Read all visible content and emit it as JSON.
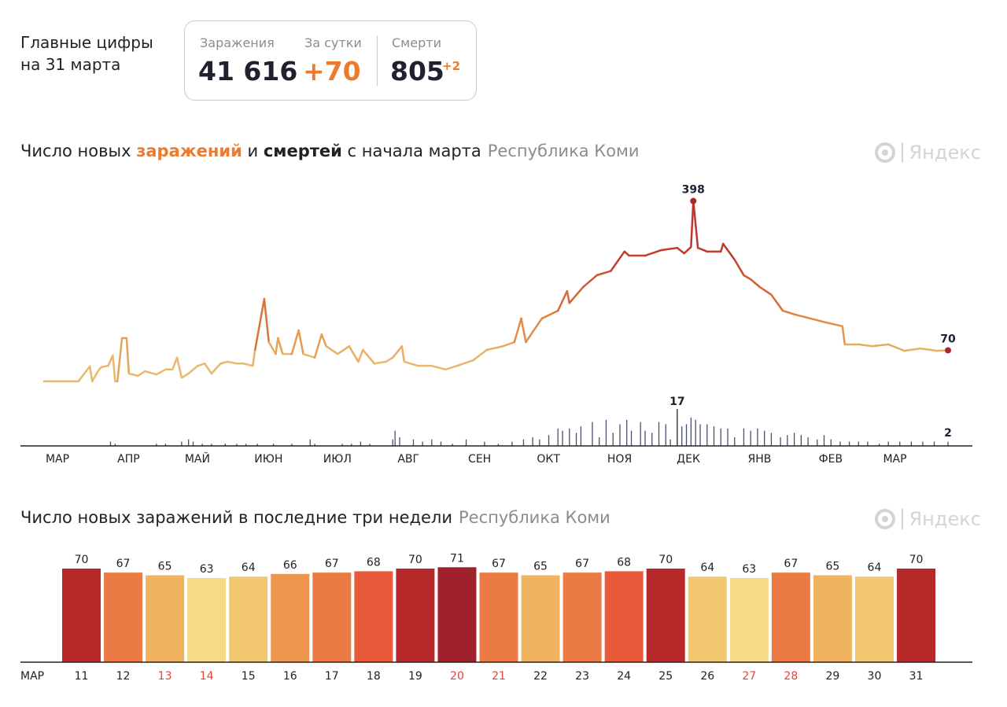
{
  "summary": {
    "title_line1": "Главные цифры",
    "title_line2": "на 31 марта",
    "infections_label": "Заражения",
    "infections_value": "41 616",
    "daily_label": "За сутки",
    "daily_value": "+70",
    "deaths_label": "Смерти",
    "deaths_value": "805",
    "deaths_delta": "+2"
  },
  "logo_text": "Яндекс",
  "colors": {
    "accent": "#ee7a2f",
    "dark": "#1f2030",
    "muted": "#8b8b95",
    "weekend": "#e0453a",
    "deaths_bar": "#4a4e6e",
    "line_low": "#e9b96b",
    "line_mid": "#e2843f",
    "line_high": "#c0362c"
  },
  "chart_data": [
    {
      "type": "line",
      "title_parts": {
        "p1": "Число новых ",
        "p2": "заражений",
        "p3": " и ",
        "p4": "смертей",
        "p5": " с начала марта",
        "region": "Республика Коми"
      },
      "x_tick_labels": [
        "МАР",
        "АПР",
        "МАЙ",
        "ИЮН",
        "ИЮЛ",
        "АВГ",
        "СЕН",
        "ОКТ",
        "НОЯ",
        "ДЕК",
        "ЯНВ",
        "ФЕВ",
        "МАР"
      ],
      "x_range": [
        "2020-03-01",
        "2021-03-31"
      ],
      "annotations": {
        "peak_value": "398",
        "last_value": "70",
        "deaths_peak": "17",
        "deaths_last": "2"
      },
      "series": [
        {
          "name": "заражений",
          "points": [
            [
              "2020-03-02",
              2
            ],
            [
              "2020-03-17",
              2
            ],
            [
              "2020-03-22",
              35
            ],
            [
              "2020-03-23",
              2
            ],
            [
              "2020-03-26",
              28
            ],
            [
              "2020-03-27",
              33
            ],
            [
              "2020-03-30",
              36
            ],
            [
              "2020-04-01",
              59
            ],
            [
              "2020-04-02",
              2
            ],
            [
              "2020-04-03",
              2
            ],
            [
              "2020-04-05",
              97
            ],
            [
              "2020-04-07",
              97
            ],
            [
              "2020-04-08",
              19
            ],
            [
              "2020-04-12",
              14
            ],
            [
              "2020-04-15",
              24
            ],
            [
              "2020-04-20",
              17
            ],
            [
              "2020-04-24",
              28
            ],
            [
              "2020-04-27",
              28
            ],
            [
              "2020-04-29",
              54
            ],
            [
              "2020-05-01",
              10
            ],
            [
              "2020-05-04",
              19
            ],
            [
              "2020-05-08",
              36
            ],
            [
              "2020-05-11",
              41
            ],
            [
              "2020-05-14",
              19
            ],
            [
              "2020-05-18",
              41
            ],
            [
              "2020-05-21",
              45
            ],
            [
              "2020-05-25",
              41
            ],
            [
              "2020-05-28",
              41
            ],
            [
              "2020-06-01",
              36
            ],
            [
              "2020-06-02",
              71
            ],
            [
              "2020-06-06",
              183
            ],
            [
              "2020-06-08",
              88
            ],
            [
              "2020-06-11",
              62
            ],
            [
              "2020-06-12",
              97
            ],
            [
              "2020-06-14",
              62
            ],
            [
              "2020-06-18",
              62
            ],
            [
              "2020-06-21",
              114
            ],
            [
              "2020-06-23",
              62
            ],
            [
              "2020-06-28",
              54
            ],
            [
              "2020-07-01",
              105
            ],
            [
              "2020-07-03",
              79
            ],
            [
              "2020-07-08",
              62
            ],
            [
              "2020-07-13",
              79
            ],
            [
              "2020-07-17",
              45
            ],
            [
              "2020-07-19",
              71
            ],
            [
              "2020-07-24",
              41
            ],
            [
              "2020-07-29",
              45
            ],
            [
              "2020-08-01",
              54
            ],
            [
              "2020-08-05",
              79
            ],
            [
              "2020-08-06",
              45
            ],
            [
              "2020-08-12",
              36
            ],
            [
              "2020-08-18",
              36
            ],
            [
              "2020-08-24",
              28
            ],
            [
              "2020-08-29",
              36
            ],
            [
              "2020-09-05",
              48
            ],
            [
              "2020-09-11",
              71
            ],
            [
              "2020-09-18",
              79
            ],
            [
              "2020-09-23",
              88
            ],
            [
              "2020-09-26",
              140
            ],
            [
              "2020-09-28",
              88
            ],
            [
              "2020-10-05",
              140
            ],
            [
              "2020-10-12",
              157
            ],
            [
              "2020-10-16",
              200
            ],
            [
              "2020-10-17",
              174
            ],
            [
              "2020-10-23",
              209
            ],
            [
              "2020-10-29",
              235
            ],
            [
              "2020-11-04",
              244
            ],
            [
              "2020-11-10",
              287
            ],
            [
              "2020-11-12",
              278
            ],
            [
              "2020-11-19",
              278
            ],
            [
              "2020-11-26",
              290
            ],
            [
              "2020-12-03",
              295
            ],
            [
              "2020-12-06",
              283
            ],
            [
              "2020-12-09",
              297
            ],
            [
              "2020-12-10",
              398
            ],
            [
              "2020-12-12",
              295
            ],
            [
              "2020-12-16",
              287
            ],
            [
              "2020-12-22",
              287
            ],
            [
              "2020-12-23",
              304
            ],
            [
              "2020-12-28",
              269
            ],
            [
              "2021-01-01",
              235
            ],
            [
              "2021-01-04",
              226
            ],
            [
              "2021-01-08",
              209
            ],
            [
              "2021-01-13",
              192
            ],
            [
              "2021-01-18",
              157
            ],
            [
              "2021-01-23",
              149
            ],
            [
              "2021-01-30",
              140
            ],
            [
              "2021-02-06",
              131
            ],
            [
              "2021-02-13",
              123
            ],
            [
              "2021-02-14",
              83
            ],
            [
              "2021-02-20",
              83
            ],
            [
              "2021-02-26",
              79
            ],
            [
              "2021-03-05",
              83
            ],
            [
              "2021-03-12",
              69
            ],
            [
              "2021-03-19",
              74
            ],
            [
              "2021-03-26",
              69
            ],
            [
              "2021-03-31",
              70
            ]
          ]
        },
        {
          "name": "смертей",
          "points": [
            [
              "2020-03-31",
              2
            ],
            [
              "2020-04-02",
              1
            ],
            [
              "2020-04-20",
              1
            ],
            [
              "2020-04-24",
              1
            ],
            [
              "2020-05-01",
              2
            ],
            [
              "2020-05-04",
              3
            ],
            [
              "2020-05-06",
              2
            ],
            [
              "2020-05-10",
              1
            ],
            [
              "2020-05-14",
              1
            ],
            [
              "2020-05-20",
              1
            ],
            [
              "2020-05-25",
              1
            ],
            [
              "2020-05-29",
              1
            ],
            [
              "2020-06-03",
              1
            ],
            [
              "2020-06-10",
              1
            ],
            [
              "2020-06-18",
              1
            ],
            [
              "2020-06-26",
              3
            ],
            [
              "2020-06-28",
              1
            ],
            [
              "2020-07-10",
              1
            ],
            [
              "2020-07-14",
              1
            ],
            [
              "2020-07-18",
              2
            ],
            [
              "2020-07-22",
              1
            ],
            [
              "2020-08-01",
              3
            ],
            [
              "2020-08-02",
              7
            ],
            [
              "2020-08-04",
              4
            ],
            [
              "2020-08-10",
              3
            ],
            [
              "2020-08-14",
              2
            ],
            [
              "2020-08-18",
              3
            ],
            [
              "2020-08-22",
              2
            ],
            [
              "2020-08-27",
              1
            ],
            [
              "2020-09-02",
              3
            ],
            [
              "2020-09-10",
              2
            ],
            [
              "2020-09-16",
              1
            ],
            [
              "2020-09-22",
              2
            ],
            [
              "2020-09-27",
              3
            ],
            [
              "2020-10-01",
              4
            ],
            [
              "2020-10-04",
              3
            ],
            [
              "2020-10-08",
              5
            ],
            [
              "2020-10-12",
              8
            ],
            [
              "2020-10-14",
              7
            ],
            [
              "2020-10-17",
              8
            ],
            [
              "2020-10-20",
              6
            ],
            [
              "2020-10-22",
              9
            ],
            [
              "2020-10-27",
              11
            ],
            [
              "2020-10-30",
              4
            ],
            [
              "2020-11-02",
              12
            ],
            [
              "2020-11-05",
              6
            ],
            [
              "2020-11-08",
              10
            ],
            [
              "2020-11-11",
              12
            ],
            [
              "2020-11-13",
              7
            ],
            [
              "2020-11-17",
              11
            ],
            [
              "2020-11-19",
              7
            ],
            [
              "2020-11-22",
              6
            ],
            [
              "2020-11-25",
              11
            ],
            [
              "2020-11-28",
              10
            ],
            [
              "2020-11-30",
              3
            ],
            [
              "2020-12-03",
              17
            ],
            [
              "2020-12-05",
              9
            ],
            [
              "2020-12-07",
              10
            ],
            [
              "2020-12-09",
              13
            ],
            [
              "2020-12-11",
              12
            ],
            [
              "2020-12-13",
              10
            ],
            [
              "2020-12-16",
              10
            ],
            [
              "2020-12-19",
              9
            ],
            [
              "2020-12-22",
              8
            ],
            [
              "2020-12-25",
              8
            ],
            [
              "2020-12-28",
              4
            ],
            [
              "2021-01-01",
              8
            ],
            [
              "2021-01-04",
              7
            ],
            [
              "2021-01-07",
              8
            ],
            [
              "2021-01-10",
              7
            ],
            [
              "2021-01-13",
              6
            ],
            [
              "2021-01-17",
              4
            ],
            [
              "2021-01-20",
              5
            ],
            [
              "2021-01-23",
              6
            ],
            [
              "2021-01-26",
              5
            ],
            [
              "2021-01-29",
              4
            ],
            [
              "2021-02-02",
              3
            ],
            [
              "2021-02-05",
              5
            ],
            [
              "2021-02-08",
              3
            ],
            [
              "2021-02-12",
              2
            ],
            [
              "2021-02-16",
              2
            ],
            [
              "2021-02-20",
              2
            ],
            [
              "2021-02-24",
              2
            ],
            [
              "2021-03-01",
              1
            ],
            [
              "2021-03-05",
              2
            ],
            [
              "2021-03-10",
              2
            ],
            [
              "2021-03-15",
              2
            ],
            [
              "2021-03-20",
              2
            ],
            [
              "2021-03-25",
              2
            ],
            [
              "2021-03-31",
              2
            ]
          ]
        }
      ],
      "ylim": [
        0,
        400
      ],
      "deaths_ylim": [
        0,
        17
      ],
      "grid": false
    },
    {
      "type": "bar",
      "title": "Число новых заражений в последние три недели",
      "region": "Республика Коми",
      "month_label": "МАР",
      "categories": [
        "11",
        "12",
        "13",
        "14",
        "15",
        "16",
        "17",
        "18",
        "19",
        "20",
        "21",
        "22",
        "23",
        "24",
        "25",
        "26",
        "27",
        "28",
        "29",
        "30",
        "31"
      ],
      "values": [
        70,
        67,
        65,
        63,
        64,
        66,
        67,
        68,
        70,
        71,
        67,
        65,
        67,
        68,
        70,
        64,
        63,
        67,
        65,
        64,
        70
      ],
      "weekend": [
        false,
        false,
        true,
        true,
        false,
        false,
        false,
        false,
        false,
        true,
        true,
        false,
        false,
        false,
        false,
        false,
        true,
        true,
        false,
        false,
        false
      ],
      "bar_colors": [
        "#b8292c",
        "#ec7a45",
        "#f0b35f",
        "#f7d986",
        "#f3c670",
        "#ed9650",
        "#ec7a45",
        "#e85a3a",
        "#b8292c",
        "#a0202c",
        "#ec7a45",
        "#f0b35f",
        "#ec7a45",
        "#e85a3a",
        "#b8292c",
        "#f3c670",
        "#f7d986",
        "#ec7a45",
        "#f0b35f",
        "#f3c670",
        "#b8292c"
      ],
      "ylim": [
        0,
        83
      ],
      "grid": false
    }
  ]
}
